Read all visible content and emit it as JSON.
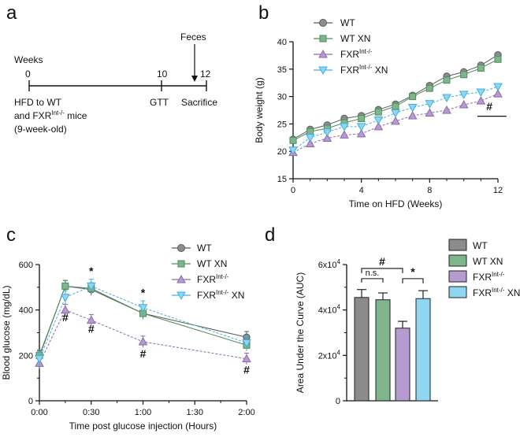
{
  "panels": {
    "a": {
      "letter": "a",
      "weeks_label": "Weeks",
      "feces_label": "Feces",
      "timeline_ticks": [
        "0",
        "10",
        "12"
      ],
      "hfd_line1": "HFD to WT",
      "hfd_line2_prefix": "and FXR",
      "hfd_line2_sup": "Int-/-",
      "hfd_line2_suffix": " mice",
      "hfd_line3": "(9-week-old)",
      "gtt_label": "GTT",
      "sacrifice_label": "Sacrifice"
    },
    "b": {
      "letter": "b"
    },
    "c": {
      "letter": "c"
    },
    "d": {
      "letter": "d"
    }
  },
  "legend": {
    "wt": "WT",
    "wt_xn": "WT XN",
    "fxr_prefix": "FXR",
    "fxr_sup": "Int-/-",
    "fxr_xn_suffix": " XN"
  },
  "colors": {
    "WT": "#8c8c8c",
    "WT_stroke": "#5a5a5a",
    "WT_XN": "#7fb58b",
    "WT_XN_stroke": "#4e8a5c",
    "FXR": "#b69bd0",
    "FXR_stroke": "#8b6aa8",
    "FXR_XN": "#8fd6f2",
    "FXR_XN_stroke": "#3fb0de"
  },
  "chart_data": [
    {
      "id": "b",
      "type": "line",
      "title": "",
      "xlabel": "Time on HFD (Weeks)",
      "ylabel": "Body weight (g)",
      "xlim": [
        0,
        12
      ],
      "ylim": [
        15,
        40
      ],
      "xticks": [
        0,
        4,
        8,
        12
      ],
      "yticks": [
        15,
        20,
        25,
        30,
        35,
        40
      ],
      "x": [
        0,
        1,
        2,
        3,
        4,
        5,
        6,
        7,
        8,
        9,
        10,
        11,
        12
      ],
      "series": [
        {
          "name": "WT",
          "values": [
            22.2,
            24.0,
            24.8,
            26.0,
            26.5,
            27.6,
            28.6,
            30.2,
            32.0,
            33.7,
            34.5,
            35.7,
            37.6
          ]
        },
        {
          "name": "WT XN",
          "values": [
            22.0,
            23.6,
            24.2,
            25.2,
            26.0,
            27.2,
            28.2,
            30.0,
            31.5,
            33.0,
            34.0,
            35.2,
            36.8
          ]
        },
        {
          "name": "FXR Int-/-",
          "values": [
            19.8,
            21.4,
            22.4,
            23.0,
            23.2,
            24.5,
            25.5,
            26.5,
            27.0,
            27.5,
            28.5,
            29.2,
            30.5
          ]
        },
        {
          "name": "FXR Int-/- XN",
          "values": [
            20.2,
            22.5,
            23.5,
            24.5,
            24.5,
            25.7,
            27.0,
            28.0,
            28.7,
            29.8,
            30.4,
            30.8,
            31.8
          ]
        }
      ],
      "annotations": [
        {
          "text": "#",
          "x": 11.5,
          "y": 27.5
        }
      ],
      "legend_position": "top-left"
    },
    {
      "id": "c",
      "type": "line",
      "title": "",
      "xlabel": "Time post glucose injection (Hours)",
      "ylabel": "Blood glucose (mg/dL)",
      "xlim": [
        0,
        120
      ],
      "ylim": [
        0,
        600
      ],
      "xticks": [
        0,
        30,
        60,
        90,
        120
      ],
      "xtick_labels": [
        "0:00",
        "0:30",
        "1:00",
        "1:30",
        "2:00"
      ],
      "yticks": [
        0,
        200,
        400,
        600
      ],
      "x": [
        0,
        15,
        30,
        60,
        120
      ],
      "series": [
        {
          "name": "WT",
          "values": [
            195,
            505,
            490,
            385,
            280
          ]
        },
        {
          "name": "WT XN",
          "values": [
            200,
            505,
            495,
            385,
            245
          ]
        },
        {
          "name": "FXR Int-/-",
          "values": [
            165,
            400,
            355,
            260,
            185
          ]
        },
        {
          "name": "FXR Int-/- XN",
          "values": [
            185,
            455,
            505,
            410,
            255
          ]
        }
      ],
      "annotations": [
        {
          "text": "*",
          "x": 30,
          "y": 555
        },
        {
          "text": "*",
          "x": 60,
          "y": 460
        },
        {
          "text": "#",
          "x": 15,
          "y": 350
        },
        {
          "text": "#",
          "x": 30,
          "y": 300
        },
        {
          "text": "#",
          "x": 60,
          "y": 190
        },
        {
          "text": "#",
          "x": 120,
          "y": 120
        }
      ],
      "legend_position": "top-right"
    },
    {
      "id": "d",
      "type": "bar",
      "title": "",
      "xlabel": "",
      "ylabel": "Area Under the Curve (AUC)",
      "ylim": [
        0,
        60000
      ],
      "yticks": [
        0,
        20000,
        40000,
        60000
      ],
      "ytick_labels": [
        {
          "base": "0",
          "exp": ""
        },
        {
          "base": "2x10",
          "exp": "4"
        },
        {
          "base": "4x10",
          "exp": "4"
        },
        {
          "base": "6x10",
          "exp": "4"
        }
      ],
      "categories": [
        "WT",
        "WT XN",
        "FXR Int-/-",
        "FXR Int-/- XN"
      ],
      "values": [
        45500,
        44500,
        32000,
        45000
      ],
      "errors": [
        3500,
        3000,
        3000,
        3500
      ],
      "annotations": [
        {
          "text": "#",
          "between": [
            "WT",
            "FXR Int-/-"
          ]
        },
        {
          "text": "n.s.",
          "between": [
            "WT",
            "WT XN"
          ]
        },
        {
          "text": "*",
          "between": [
            "FXR Int-/-",
            "FXR Int-/- XN"
          ]
        }
      ],
      "legend_position": "right"
    }
  ]
}
